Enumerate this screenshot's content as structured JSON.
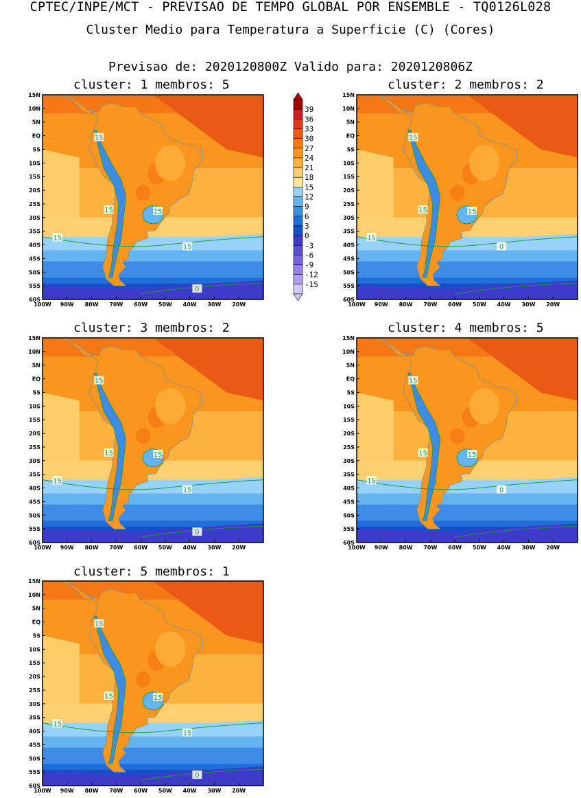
{
  "header": {
    "title": "CPTEC/INPE/MCT - PREVISAO DE TEMPO GLOBAL POR ENSEMBLE - TQ0126L028",
    "subtitle": "Cluster Medio para Temperatura a Superficie (C) (Cores)",
    "forecast_line": "Previsao de: 2020120800Z   Valido para: 2020120806Z"
  },
  "map_axes": {
    "lat_labels": [
      "15N",
      "10N",
      "5N",
      "EQ",
      "5S",
      "10S",
      "15S",
      "20S",
      "25S",
      "30S",
      "35S",
      "40S",
      "45S",
      "50S",
      "55S",
      "60S"
    ],
    "lon_labels": [
      "100W",
      "90W",
      "80W",
      "70W",
      "60W",
      "50W",
      "40W",
      "30W",
      "20W"
    ],
    "extent": {
      "lon": [
        -100,
        -10
      ],
      "lat": [
        -60,
        15
      ]
    }
  },
  "panels": [
    {
      "title": "cluster: 1   membros: 5",
      "contour_labels": [
        "15",
        "15",
        "15",
        "15",
        "15",
        "0"
      ]
    },
    {
      "title": "cluster: 2   membros: 2",
      "contour_labels": [
        "15",
        "15",
        "15",
        "15",
        "0"
      ]
    },
    {
      "title": "cluster: 3   membros: 2",
      "contour_labels": [
        "15",
        "15",
        "15",
        "15",
        "15",
        "0"
      ]
    },
    {
      "title": "cluster: 4   membros: 5",
      "contour_labels": [
        "15",
        "15",
        "15",
        "15",
        "0"
      ]
    },
    {
      "title": "cluster: 5   membros: 1",
      "contour_labels": [
        "15",
        "15",
        "15",
        "15",
        "15",
        "0"
      ]
    }
  ],
  "colorbar": {
    "ticks": [
      "39",
      "36",
      "33",
      "30",
      "27",
      "24",
      "21",
      "18",
      "15",
      "12",
      "9",
      "6",
      "3",
      "0",
      "-3",
      "-6",
      "-9",
      "-12",
      "-15"
    ],
    "colors": [
      "#a50000",
      "#c81e1e",
      "#dc3c1e",
      "#eb5a14",
      "#f57814",
      "#fa961e",
      "#fcb23c",
      "#fcd06e",
      "#fde796",
      "#96d2fa",
      "#64b4f0",
      "#3c8ce6",
      "#1e6edc",
      "#1450c8",
      "#3c3cc8",
      "#5a50d2",
      "#7864dc",
      "#9682e6",
      "#b4a0f0",
      "#d2c8fa"
    ]
  },
  "map_colors": {
    "land_outline": "#8c8c8c",
    "contour_line": "#1e9b3c"
  }
}
